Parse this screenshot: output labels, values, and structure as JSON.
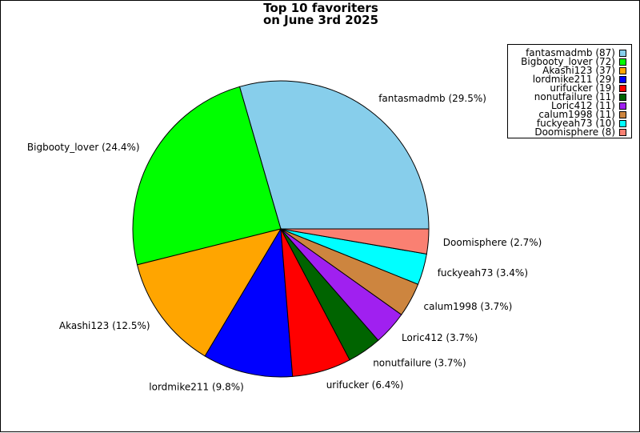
{
  "chart_data": {
    "type": "pie",
    "title": "Top 10 favoriters\non June 3rd 2025",
    "slices": [
      {
        "name": "fantasmadmb",
        "value": 87,
        "percent_label": "fantasmadmb (29.5%)",
        "legend_label": "fantasmadmb (87)",
        "color": "#87CEEB"
      },
      {
        "name": "Bigbooty_lover",
        "value": 72,
        "percent_label": "Bigbooty_lover (24.4%)",
        "legend_label": "Bigbooty_lover (72)",
        "color": "#00FF00"
      },
      {
        "name": "Akashi123",
        "value": 37,
        "percent_label": "Akashi123 (12.5%)",
        "legend_label": "Akashi123 (37)",
        "color": "#FFA500"
      },
      {
        "name": "lordmike211",
        "value": 29,
        "percent_label": "lordmike211 (9.8%)",
        "legend_label": "lordmike211 (29)",
        "color": "#0000FF"
      },
      {
        "name": "urifucker",
        "value": 19,
        "percent_label": "urifucker (6.4%)",
        "legend_label": "urifucker (19)",
        "color": "#FF0000"
      },
      {
        "name": "nonutfailure",
        "value": 11,
        "percent_label": "nonutfailure (3.7%)",
        "legend_label": "nonutfailure (11)",
        "color": "#006400"
      },
      {
        "name": "Loric412",
        "value": 11,
        "percent_label": "Loric412 (3.7%)",
        "legend_label": "Loric412 (11)",
        "color": "#A020F0"
      },
      {
        "name": "calum1998",
        "value": 11,
        "percent_label": "calum1998 (3.7%)",
        "legend_label": "calum1998 (11)",
        "color": "#CD853F"
      },
      {
        "name": "fuckyeah73",
        "value": 10,
        "percent_label": "fuckyeah73 (3.4%)",
        "legend_label": "fuckyeah73 (10)",
        "color": "#00FFFF"
      },
      {
        "name": "Doomisphere",
        "value": 8,
        "percent_label": "Doomisphere (2.7%)",
        "legend_label": "Doomisphere (8)",
        "color": "#FA8072"
      }
    ],
    "start_direction": "east",
    "rotation": "counterclockwise",
    "legend_position": "top-right"
  }
}
